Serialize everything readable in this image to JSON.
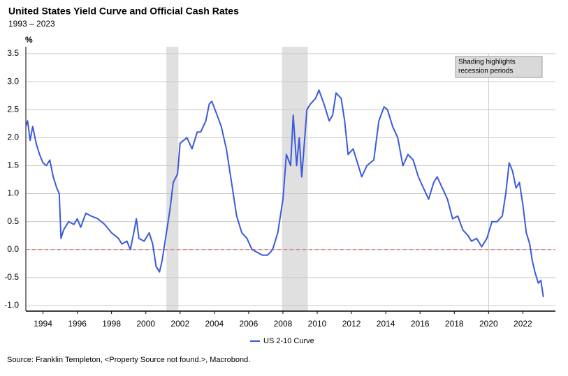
{
  "chart_data": {
    "type": "line",
    "title": "United States Yield Curve and Official Cash Rates",
    "subtitle": "1993 – 2023",
    "y_unit": "%",
    "source": "Source: Franklin Templeton, <Property Source not found.>, Macrobond.",
    "annotation": [
      "Shading highlights",
      "recession periods"
    ],
    "recessions": [
      [
        2001.2,
        2001.9
      ],
      [
        2007.95,
        2009.45
      ]
    ],
    "reference_line": 0,
    "vline": 2020,
    "xlim": [
      1993,
      2023.9
    ],
    "xticks": [
      1994,
      1996,
      1998,
      2000,
      2002,
      2004,
      2006,
      2008,
      2010,
      2012,
      2014,
      2016,
      2018,
      2020,
      2022
    ],
    "ylim": [
      -1.1,
      3.5
    ],
    "yticks": [
      3.5,
      {
        "value": 3,
        "label": "3.0"
      },
      2.5,
      {
        "value": 2,
        "label": "2.0"
      },
      1.5,
      {
        "value": 1,
        "label": "1.0"
      },
      0.5,
      {
        "value": 0,
        "label": "0.0"
      },
      -0.5,
      {
        "value": -1,
        "label": "-1.0"
      }
    ],
    "grid": true,
    "x": [
      1993.0,
      1993.1,
      1993.25,
      1993.4,
      1993.6,
      1993.8,
      1994.0,
      1994.2,
      1994.4,
      1994.6,
      1994.8,
      1994.95,
      1995.05,
      1995.2,
      1995.5,
      1995.8,
      1996.0,
      1996.2,
      1996.5,
      1996.8,
      1997.2,
      1997.6,
      1998.0,
      1998.4,
      1998.6,
      1998.9,
      1999.1,
      1999.3,
      1999.45,
      1999.6,
      1999.9,
      2000.2,
      2000.4,
      2000.6,
      2000.8,
      2000.95,
      2001.2,
      2001.4,
      2001.6,
      2001.85,
      2002.0,
      2002.4,
      2002.7,
      2003.0,
      2003.2,
      2003.5,
      2003.7,
      2003.85,
      2004.1,
      2004.4,
      2004.7,
      2005.0,
      2005.3,
      2005.6,
      2005.9,
      2006.2,
      2006.5,
      2006.8,
      2007.1,
      2007.4,
      2007.7,
      2008.0,
      2008.2,
      2008.45,
      2008.6,
      2008.8,
      2008.95,
      2009.1,
      2009.4,
      2009.6,
      2009.9,
      2010.1,
      2010.4,
      2010.7,
      2010.9,
      2011.1,
      2011.4,
      2011.6,
      2011.8,
      2012.1,
      2012.4,
      2012.6,
      2012.9,
      2013.3,
      2013.6,
      2013.9,
      2014.1,
      2014.4,
      2014.7,
      2015.0,
      2015.3,
      2015.6,
      2015.9,
      2016.2,
      2016.5,
      2016.8,
      2017.0,
      2017.3,
      2017.6,
      2017.9,
      2018.2,
      2018.5,
      2018.8,
      2019.0,
      2019.3,
      2019.6,
      2019.9,
      2020.2,
      2020.5,
      2020.8,
      2021.0,
      2021.2,
      2021.4,
      2021.6,
      2021.8,
      2022.0,
      2022.2,
      2022.4,
      2022.55,
      2022.7,
      2022.9,
      2023.05,
      2023.2
    ],
    "series": [
      {
        "name": "US 2-10 Curve",
        "color": "#3b5bdb",
        "values": [
          2.2,
          2.3,
          1.95,
          2.2,
          1.9,
          1.7,
          1.55,
          1.5,
          1.6,
          1.3,
          1.1,
          1.0,
          0.2,
          0.35,
          0.5,
          0.45,
          0.55,
          0.4,
          0.65,
          0.6,
          0.55,
          0.45,
          0.3,
          0.2,
          0.1,
          0.15,
          0.0,
          0.3,
          0.55,
          0.2,
          0.15,
          0.3,
          0.1,
          -0.3,
          -0.4,
          -0.2,
          0.3,
          0.7,
          1.2,
          1.35,
          1.9,
          2.0,
          1.8,
          2.1,
          2.1,
          2.3,
          2.6,
          2.65,
          2.45,
          2.2,
          1.8,
          1.2,
          0.6,
          0.3,
          0.2,
          0.0,
          -0.05,
          -0.1,
          -0.1,
          0.0,
          0.3,
          0.9,
          1.7,
          1.5,
          2.4,
          1.5,
          2.0,
          1.3,
          2.5,
          2.6,
          2.7,
          2.85,
          2.6,
          2.3,
          2.4,
          2.8,
          2.7,
          2.3,
          1.7,
          1.8,
          1.5,
          1.3,
          1.5,
          1.6,
          2.3,
          2.55,
          2.5,
          2.2,
          2.0,
          1.5,
          1.7,
          1.6,
          1.3,
          1.1,
          0.9,
          1.2,
          1.3,
          1.1,
          0.9,
          0.55,
          0.6,
          0.35,
          0.25,
          0.15,
          0.2,
          0.05,
          0.2,
          0.5,
          0.5,
          0.6,
          1.0,
          1.55,
          1.4,
          1.1,
          1.2,
          0.8,
          0.3,
          0.1,
          -0.2,
          -0.4,
          -0.6,
          -0.55,
          -0.85
        ]
      }
    ]
  }
}
